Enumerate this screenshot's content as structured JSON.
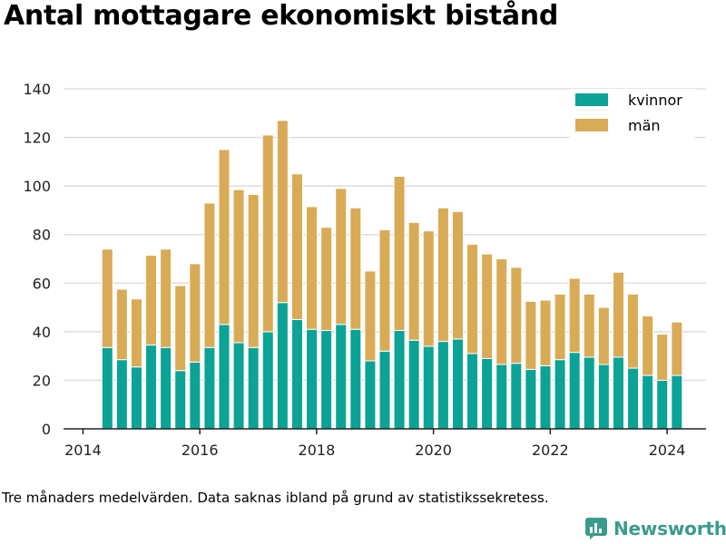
{
  "title": "Antal mottagare ekonomiskt bistånd",
  "note": "Tre månaders medelvärden. Data saknas ibland på grund av statistikssekretess.",
  "brand": "Newsworthy",
  "colors": {
    "kvinnor": "#0aa396",
    "man": "#d9ab57",
    "grid": "#dddddd",
    "brand": "#3a9b8c"
  },
  "chart_data": {
    "type": "bar",
    "stacked": true,
    "x": [
      "2014-06",
      "2014-09",
      "2014-12",
      "2015-03",
      "2015-06",
      "2015-09",
      "2015-12",
      "2016-03",
      "2016-06",
      "2016-09",
      "2016-12",
      "2017-03",
      "2017-06",
      "2017-09",
      "2017-12",
      "2018-03",
      "2018-06",
      "2018-09",
      "2018-12",
      "2019-03",
      "2019-06",
      "2019-09",
      "2019-12",
      "2020-03",
      "2020-06",
      "2020-09",
      "2020-12",
      "2021-03",
      "2021-06",
      "2021-09",
      "2021-12",
      "2022-03",
      "2022-06",
      "2022-09",
      "2022-12",
      "2023-03",
      "2023-06",
      "2023-09",
      "2023-12",
      "2024-03"
    ],
    "series": [
      {
        "name": "kvinnor",
        "values": [
          33.5,
          28.5,
          25.5,
          34.5,
          33.5,
          24,
          27.5,
          33.5,
          43,
          35.5,
          33.5,
          40,
          52,
          45,
          41,
          40.5,
          43,
          41,
          28,
          32,
          40.5,
          36.5,
          34,
          36,
          37,
          31,
          29,
          26.5,
          27,
          24.5,
          26,
          28.5,
          31.5,
          29.5,
          26.5,
          29.5,
          25,
          22,
          20,
          22
        ]
      },
      {
        "name": "män",
        "values": [
          40.5,
          29,
          28,
          37,
          40.5,
          35,
          40.5,
          59.5,
          72,
          63,
          63,
          81,
          75,
          60,
          50.5,
          42.5,
          56,
          50,
          37,
          50,
          63.5,
          48.5,
          47.5,
          55,
          52.5,
          45,
          43,
          43.5,
          39.5,
          28,
          27,
          27,
          30.5,
          26,
          23.5,
          35,
          30.5,
          24.5,
          19,
          22
        ]
      }
    ],
    "ylim": [
      0,
      140
    ],
    "yticks": [
      "0",
      "20",
      "40",
      "60",
      "80",
      "100",
      "120",
      "140"
    ],
    "xticks": [
      "2014",
      "2016",
      "2018",
      "2020",
      "2022",
      "2024"
    ],
    "xticks_pos": [
      "2014-01",
      "2016-01",
      "2018-01",
      "2020-01",
      "2022-01",
      "2024-01"
    ],
    "x_start": "2013-09",
    "x_end": "2024-09",
    "grid": true,
    "legend": "top-right"
  }
}
